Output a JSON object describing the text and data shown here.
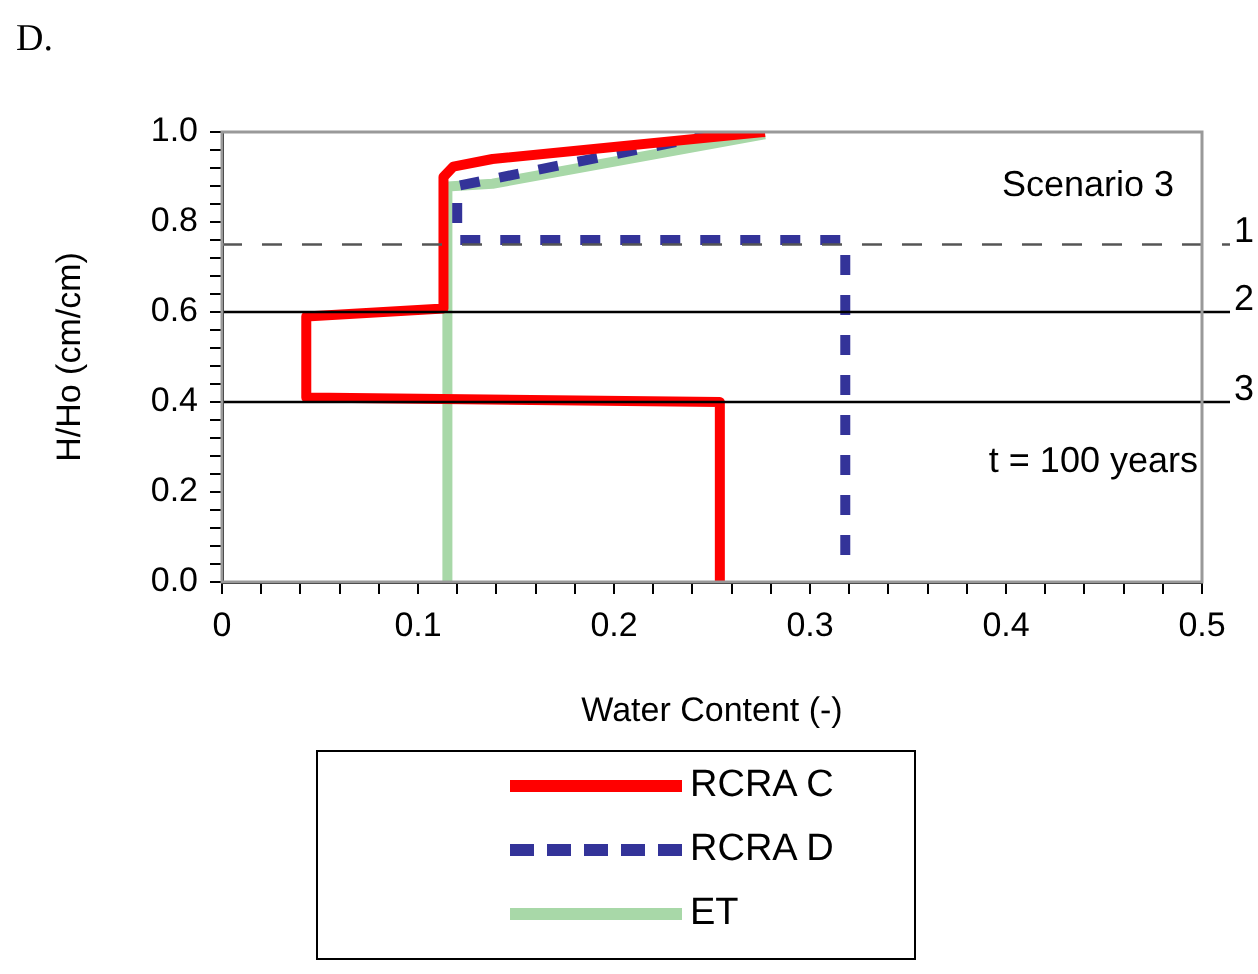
{
  "chart_data": {
    "type": "line",
    "title": "D.",
    "xlabel": "Water Content (-)",
    "ylabel": "H/Ho (cm/cm)",
    "xlim": [
      0,
      0.5
    ],
    "ylim": [
      0,
      1
    ],
    "xticks": [
      0,
      {
        "value": 0.02,
        "label": null
      },
      {
        "value": 0.04,
        "label": null
      },
      {
        "value": 0.06,
        "label": null
      },
      {
        "value": 0.08,
        "label": null
      },
      0.1,
      {
        "value": 0.12,
        "label": null
      },
      {
        "value": 0.14,
        "label": null
      },
      {
        "value": 0.16,
        "label": null
      },
      {
        "value": 0.18,
        "label": null
      },
      0.2,
      {
        "value": 0.22,
        "label": null
      },
      {
        "value": 0.24,
        "label": null
      },
      {
        "value": 0.26,
        "label": null
      },
      {
        "value": 0.28,
        "label": null
      },
      0.3,
      {
        "value": 0.32,
        "label": null
      },
      {
        "value": 0.34,
        "label": null
      },
      {
        "value": 0.36,
        "label": null
      },
      {
        "value": 0.38,
        "label": null
      },
      0.4,
      {
        "value": 0.42,
        "label": null
      },
      {
        "value": 0.44,
        "label": null
      },
      {
        "value": 0.46,
        "label": null
      },
      {
        "value": 0.48,
        "label": null
      },
      0.5
    ],
    "yticks": [
      {
        "value": 0,
        "label": "0.0"
      },
      {
        "value": 0.04,
        "label": null
      },
      {
        "value": 0.08,
        "label": null
      },
      {
        "value": 0.12,
        "label": null
      },
      {
        "value": 0.16,
        "label": null
      },
      0.2,
      {
        "value": 0.24,
        "label": null
      },
      {
        "value": 0.28,
        "label": null
      },
      {
        "value": 0.32,
        "label": null
      },
      {
        "value": 0.36,
        "label": null
      },
      0.4,
      {
        "value": 0.44,
        "label": null
      },
      {
        "value": 0.48,
        "label": null
      },
      {
        "value": 0.52,
        "label": null
      },
      {
        "value": 0.56,
        "label": null
      },
      0.6,
      {
        "value": 0.64,
        "label": null
      },
      {
        "value": 0.68,
        "label": null
      },
      {
        "value": 0.72,
        "label": null
      },
      {
        "value": 0.76,
        "label": null
      },
      0.8,
      {
        "value": 0.84,
        "label": null
      },
      {
        "value": 0.88,
        "label": null
      },
      {
        "value": 0.92,
        "label": null
      },
      {
        "value": 0.96,
        "label": null
      },
      {
        "value": 1,
        "label": "1.0"
      }
    ],
    "series": [
      {
        "name": "RCRA C",
        "color": "#ff0000",
        "line_style": "solid",
        "x": [
          0.254,
          0.254,
          0.043,
          0.043,
          0.113,
          0.113,
          0.118,
          0.138,
          0.277
        ],
        "values": [
          0,
          0.4,
          0.41,
          0.59,
          0.608,
          0.9,
          0.923,
          0.94,
          1.0
        ]
      },
      {
        "name": "RCRA D",
        "color": "#333399",
        "line_style": "dashed",
        "x": [
          0.318,
          0.318,
          0.12,
          0.12,
          0.257
        ],
        "values": [
          0.06,
          0.76,
          0.76,
          0.88,
          1.0
        ]
      },
      {
        "name": "ET",
        "color": "#a8d8a8",
        "line_style": "solid",
        "x": [
          0.115,
          0.115,
          0.138,
          0.277
        ],
        "values": [
          0,
          0.879,
          0.885,
          0.995
        ]
      }
    ],
    "ref_lines": [
      {
        "axis": "y",
        "value": 0.75,
        "color": "#555555",
        "line_style": "dashed"
      },
      {
        "axis": "y",
        "value": 0.6,
        "color": "#000000",
        "line_style": "solid"
      },
      {
        "axis": "y",
        "value": 0.4,
        "color": "#000000",
        "line_style": "solid"
      }
    ],
    "annotations": [
      "Scenario 3",
      "t = 100 years",
      "1",
      "2",
      "3"
    ],
    "grid": false,
    "legend": "bottom"
  }
}
